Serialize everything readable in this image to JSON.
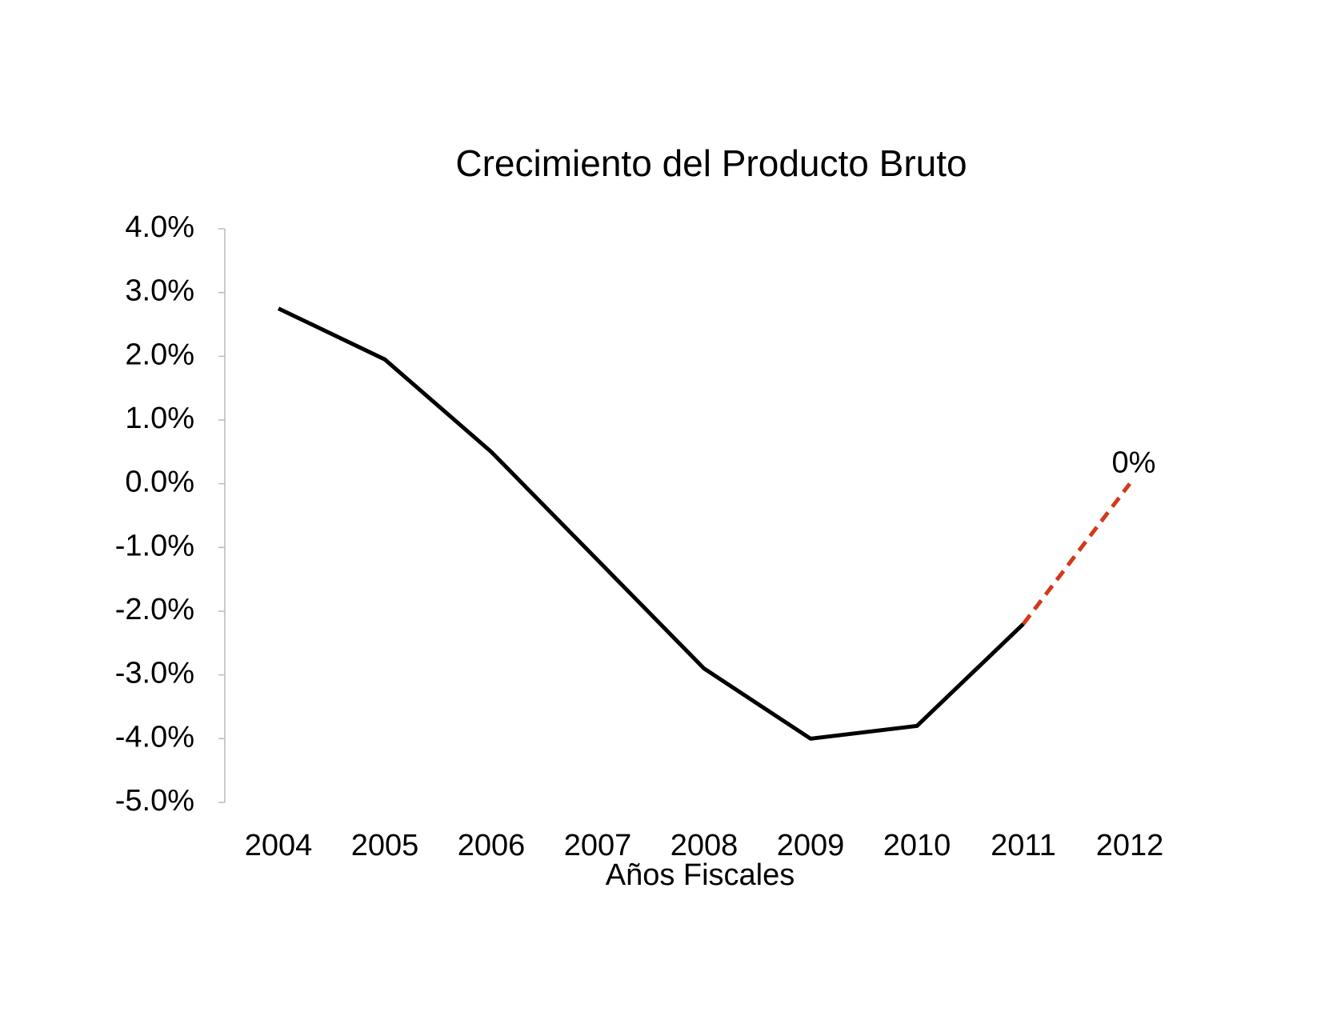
{
  "chart_data": {
    "type": "line",
    "title": "Crecimiento del Producto Bruto",
    "x_label": "Años Fiscales",
    "categories": [
      "2004",
      "2005",
      "2006",
      "2007",
      "2008",
      "2009",
      "2010",
      "2011",
      "2012"
    ],
    "series": [
      {
        "color": "#000000",
        "dash": false,
        "values": [
          2.75,
          1.95,
          0.5,
          -1.2,
          -2.9,
          -4.0,
          -3.8,
          -2.2,
          null
        ]
      },
      {
        "color": "#d4381a",
        "dash": true,
        "values": [
          null,
          null,
          null,
          null,
          null,
          null,
          null,
          -2.2,
          0
        ],
        "value_labels": [
          null,
          null,
          null,
          null,
          null,
          null,
          null,
          null,
          "0%"
        ]
      }
    ],
    "ylim": [
      -5,
      4
    ],
    "yticks": [
      {
        "value": -5,
        "label": "-5.0%"
      },
      {
        "value": -4,
        "label": "-4.0%"
      },
      {
        "value": -3,
        "label": "-3.0%"
      },
      {
        "value": -2,
        "label": "-2.0%"
      },
      {
        "value": -1,
        "label": "-1.0%"
      },
      {
        "value": 0,
        "label": "0.0%"
      },
      {
        "value": 1,
        "label": "1.0%"
      },
      {
        "value": 2,
        "label": "2.0%"
      },
      {
        "value": 3,
        "label": "3.0%"
      },
      {
        "value": 4,
        "label": "4.0%"
      }
    ]
  }
}
